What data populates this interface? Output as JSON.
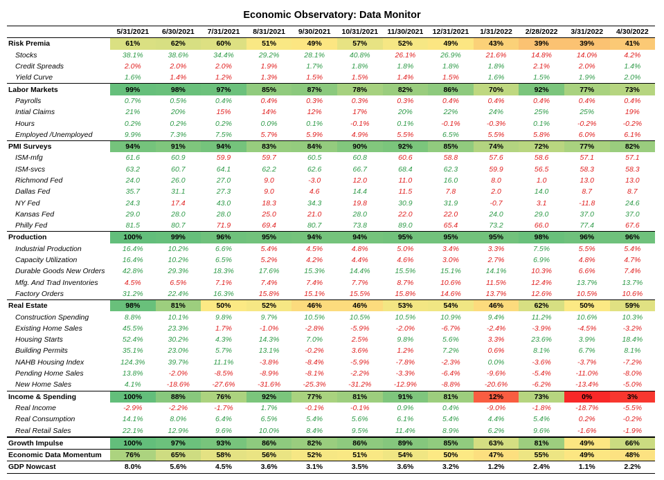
{
  "title": "Economic Observatory: Data Monitor",
  "dates": [
    "5/31/2021",
    "6/30/2021",
    "7/31/2021",
    "8/31/2021",
    "9/30/2021",
    "10/31/2021",
    "11/30/2021",
    "12/31/2021",
    "1/31/2022",
    "2/28/2022",
    "3/31/2022",
    "4/30/2022"
  ],
  "colors": {
    "positive_text": "#2e9a48",
    "negative_text": "#e02020",
    "score_scale": "red (0%) - yellow (50%) - green (100%)"
  },
  "sections": [
    {
      "label": "Risk Premia",
      "values": [
        "61%",
        "62%",
        "60%",
        "51%",
        "49%",
        "57%",
        "52%",
        "49%",
        "43%",
        "39%",
        "39%",
        "41%"
      ],
      "rows": [
        {
          "label": "Stocks",
          "values": [
            "38.1%",
            "38.6%",
            "34.4%",
            "29.2%",
            "28.1%",
            "40.8%",
            "26.1%",
            "26.9%",
            "21.6%",
            "14.8%",
            "14.0%",
            "4.2%"
          ],
          "signs": [
            "+",
            "+",
            "+",
            "+",
            "+",
            "+",
            "-",
            "+",
            "-",
            "-",
            "-",
            "-"
          ]
        },
        {
          "label": "Credit Spreads",
          "values": [
            "2.0%",
            "2.0%",
            "2.0%",
            "1.9%",
            "1.7%",
            "1.8%",
            "1.8%",
            "1.8%",
            "1.8%",
            "2.1%",
            "2.0%",
            "1.4%"
          ],
          "signs": [
            "-",
            "-",
            "-",
            "-",
            "+",
            "+",
            "+",
            "+",
            "+",
            "-",
            "-",
            "+"
          ]
        },
        {
          "label": "Yield Curve",
          "values": [
            "1.6%",
            "1.4%",
            "1.2%",
            "1.3%",
            "1.5%",
            "1.5%",
            "1.4%",
            "1.5%",
            "1.6%",
            "1.5%",
            "1.9%",
            "2.0%"
          ],
          "signs": [
            "+",
            "-",
            "-",
            "-",
            "-",
            "-",
            "-",
            "-",
            "+",
            "+",
            "+",
            "+"
          ]
        }
      ]
    },
    {
      "label": "Labor Markets",
      "values": [
        "99%",
        "98%",
        "97%",
        "85%",
        "87%",
        "78%",
        "82%",
        "86%",
        "70%",
        "92%",
        "77%",
        "73%"
      ],
      "rows": [
        {
          "label": "Payrolls",
          "values": [
            "0.7%",
            "0.5%",
            "0.4%",
            "0.4%",
            "0.3%",
            "0.3%",
            "0.3%",
            "0.4%",
            "0.4%",
            "0.4%",
            "0.4%",
            "0.4%"
          ],
          "signs": [
            "+",
            "+",
            "+",
            "-",
            "-",
            "-",
            "-",
            "-",
            "-",
            "-",
            "-",
            "-"
          ]
        },
        {
          "label": "Intial Claims",
          "values": [
            "21%",
            "20%",
            "15%",
            "14%",
            "12%",
            "17%",
            "20%",
            "22%",
            "24%",
            "25%",
            "25%",
            "19%"
          ],
          "signs": [
            "+",
            "+",
            "-",
            "-",
            "-",
            "-",
            "+",
            "+",
            "+",
            "+",
            "+",
            "-"
          ]
        },
        {
          "label": "Hours",
          "values": [
            "0.2%",
            "0.2%",
            "0.2%",
            "0.0%",
            "0.1%",
            "-0.1%",
            "0.1%",
            "-0.1%",
            "-0.3%",
            "0.1%",
            "-0.2%",
            "-0.2%"
          ],
          "signs": [
            "+",
            "+",
            "+",
            "+",
            "+",
            "-",
            "+",
            "-",
            "-",
            "+",
            "-",
            "-"
          ]
        },
        {
          "label": "Employed /Unemployed",
          "values": [
            "9.9%",
            "7.3%",
            "7.5%",
            "5.7%",
            "5.9%",
            "4.9%",
            "5.5%",
            "6.5%",
            "5.5%",
            "5.8%",
            "6.0%",
            "6.1%"
          ],
          "signs": [
            "+",
            "+",
            "+",
            "-",
            "-",
            "-",
            "-",
            "+",
            "-",
            "-",
            "-",
            "-"
          ]
        }
      ]
    },
    {
      "label": "PMI Surveys",
      "values": [
        "94%",
        "91%",
        "94%",
        "83%",
        "84%",
        "90%",
        "92%",
        "85%",
        "74%",
        "72%",
        "77%",
        "82%"
      ],
      "rows": [
        {
          "label": "ISM-mfg",
          "values": [
            "61.6",
            "60.9",
            "59.9",
            "59.7",
            "60.5",
            "60.8",
            "60.6",
            "58.8",
            "57.6",
            "58.6",
            "57.1",
            "57.1"
          ],
          "signs": [
            "+",
            "+",
            "-",
            "-",
            "+",
            "+",
            "-",
            "-",
            "-",
            "-",
            "-",
            "-"
          ]
        },
        {
          "label": "ISM-svcs",
          "values": [
            "63.2",
            "60.7",
            "64.1",
            "62.2",
            "62.6",
            "66.7",
            "68.4",
            "62.3",
            "59.9",
            "56.5",
            "58.3",
            "58.3"
          ],
          "signs": [
            "+",
            "+",
            "+",
            "+",
            "+",
            "+",
            "+",
            "+",
            "-",
            "-",
            "-",
            "-"
          ]
        },
        {
          "label": "Richmond Fed",
          "values": [
            "24.0",
            "26.0",
            "27.0",
            "9.0",
            "-3.0",
            "12.0",
            "11.0",
            "16.0",
            "8.0",
            "1.0",
            "13.0",
            "13.0"
          ],
          "signs": [
            "+",
            "+",
            "+",
            "-",
            "-",
            "-",
            "-",
            "+",
            "-",
            "-",
            "-",
            "-"
          ]
        },
        {
          "label": "Dallas Fed",
          "values": [
            "35.7",
            "31.1",
            "27.3",
            "9.0",
            "4.6",
            "14.4",
            "11.5",
            "7.8",
            "2.0",
            "14.0",
            "8.7",
            "8.7"
          ],
          "signs": [
            "+",
            "+",
            "+",
            "-",
            "-",
            "+",
            "-",
            "-",
            "-",
            "+",
            "-",
            "-"
          ]
        },
        {
          "label": "NY Fed",
          "values": [
            "24.3",
            "17.4",
            "43.0",
            "18.3",
            "34.3",
            "19.8",
            "30.9",
            "31.9",
            "-0.7",
            "3.1",
            "-11.8",
            "24.6"
          ],
          "signs": [
            "+",
            "-",
            "+",
            "-",
            "+",
            "-",
            "+",
            "+",
            "-",
            "-",
            "-",
            "+"
          ]
        },
        {
          "label": "Kansas Fed",
          "values": [
            "29.0",
            "28.0",
            "28.0",
            "25.0",
            "21.0",
            "28.0",
            "22.0",
            "22.0",
            "24.0",
            "29.0",
            "37.0",
            "37.0"
          ],
          "signs": [
            "+",
            "+",
            "+",
            "-",
            "-",
            "+",
            "-",
            "-",
            "+",
            "+",
            "+",
            "+"
          ]
        },
        {
          "label": "Philly Fed",
          "values": [
            "81.5",
            "80.7",
            "71.9",
            "69.4",
            "80.7",
            "73.8",
            "89.0",
            "65.4",
            "73.2",
            "66.0",
            "77.4",
            "67.6"
          ],
          "signs": [
            "+",
            "+",
            "-",
            "-",
            "+",
            "+",
            "+",
            "-",
            "+",
            "-",
            "+",
            "-"
          ]
        }
      ]
    },
    {
      "label": "Production",
      "values": [
        "100%",
        "99%",
        "96%",
        "95%",
        "94%",
        "94%",
        "95%",
        "95%",
        "95%",
        "98%",
        "96%",
        "96%"
      ],
      "rows": [
        {
          "label": "Industrial Production",
          "values": [
            "16.4%",
            "10.2%",
            "6.6%",
            "5.4%",
            "4.5%",
            "4.8%",
            "5.0%",
            "3.4%",
            "3.3%",
            "7.5%",
            "5.5%",
            "5.4%"
          ],
          "signs": [
            "+",
            "+",
            "+",
            "-",
            "-",
            "-",
            "-",
            "-",
            "-",
            "+",
            "-",
            "-"
          ]
        },
        {
          "label": "Capacity Utilization",
          "values": [
            "16.4%",
            "10.2%",
            "6.5%",
            "5.2%",
            "4.2%",
            "4.4%",
            "4.6%",
            "3.0%",
            "2.7%",
            "6.9%",
            "4.8%",
            "4.7%"
          ],
          "signs": [
            "+",
            "+",
            "+",
            "-",
            "-",
            "-",
            "-",
            "-",
            "-",
            "+",
            "-",
            "-"
          ]
        },
        {
          "label": "Durable Goods New Orders",
          "values": [
            "42.8%",
            "29.3%",
            "18.3%",
            "17.6%",
            "15.3%",
            "14.4%",
            "15.5%",
            "15.1%",
            "14.1%",
            "10.3%",
            "6.6%",
            "7.4%"
          ],
          "signs": [
            "+",
            "+",
            "+",
            "+",
            "+",
            "+",
            "+",
            "+",
            "+",
            "-",
            "-",
            "-"
          ]
        },
        {
          "label": "Mfg. And Trad Inventories",
          "values": [
            "4.5%",
            "6.5%",
            "7.1%",
            "7.4%",
            "7.4%",
            "7.7%",
            "8.7%",
            "10.6%",
            "11.5%",
            "12.4%",
            "13.7%",
            "13.7%"
          ],
          "signs": [
            "-",
            "-",
            "-",
            "-",
            "-",
            "-",
            "-",
            "-",
            "-",
            "-",
            "+",
            "+"
          ]
        },
        {
          "label": "Factory Orders",
          "values": [
            "31.2%",
            "22.4%",
            "16.3%",
            "15.8%",
            "15.1%",
            "15.5%",
            "15.8%",
            "14.6%",
            "13.7%",
            "12.6%",
            "10.5%",
            "10.6%"
          ],
          "signs": [
            "+",
            "+",
            "+",
            "-",
            "-",
            "-",
            "-",
            "-",
            "-",
            "-",
            "-",
            "-"
          ]
        }
      ]
    },
    {
      "label": "Real Estate",
      "values": [
        "98%",
        "81%",
        "50%",
        "52%",
        "46%",
        "46%",
        "53%",
        "54%",
        "46%",
        "62%",
        "50%",
        "59%"
      ],
      "rows": [
        {
          "label": "Construction Spending",
          "values": [
            "8.8%",
            "10.1%",
            "9.8%",
            "9.7%",
            "10.5%",
            "10.5%",
            "10.5%",
            "10.9%",
            "9.4%",
            "11.2%",
            "10.6%",
            "10.3%"
          ],
          "signs": [
            "+",
            "+",
            "+",
            "+",
            "+",
            "+",
            "+",
            "+",
            "+",
            "+",
            "+",
            "+"
          ]
        },
        {
          "label": "Existing Home Sales",
          "values": [
            "45.5%",
            "23.3%",
            "1.7%",
            "-1.0%",
            "-2.8%",
            "-5.9%",
            "-2.0%",
            "-6.7%",
            "-2.4%",
            "-3.9%",
            "-4.5%",
            "-3.2%"
          ],
          "signs": [
            "+",
            "+",
            "-",
            "-",
            "-",
            "-",
            "-",
            "-",
            "-",
            "-",
            "-",
            "-"
          ]
        },
        {
          "label": "Housing Starts",
          "values": [
            "52.4%",
            "30.2%",
            "4.3%",
            "14.3%",
            "7.0%",
            "2.5%",
            "9.8%",
            "5.6%",
            "3.3%",
            "23.6%",
            "3.9%",
            "18.4%"
          ],
          "signs": [
            "+",
            "+",
            "+",
            "+",
            "+",
            "-",
            "+",
            "+",
            "-",
            "+",
            "+",
            "+"
          ]
        },
        {
          "label": "Building Permits",
          "values": [
            "35.1%",
            "23.0%",
            "5.7%",
            "13.1%",
            "-0.2%",
            "3.6%",
            "1.2%",
            "7.2%",
            "0.6%",
            "8.1%",
            "6.7%",
            "8.1%"
          ],
          "signs": [
            "+",
            "+",
            "+",
            "+",
            "-",
            "-",
            "-",
            "+",
            "-",
            "+",
            "+",
            "+"
          ]
        },
        {
          "label": "NAHB Housing Index",
          "values": [
            "124.3%",
            "39.7%",
            "11.1%",
            "-3.8%",
            "-8.4%",
            "-5.9%",
            "-7.8%",
            "-2.3%",
            "0.0%",
            "-3.6%",
            "-3.7%",
            "-7.2%"
          ],
          "signs": [
            "+",
            "+",
            "+",
            "-",
            "-",
            "-",
            "-",
            "-",
            "+",
            "-",
            "-",
            "-"
          ]
        },
        {
          "label": "Pending Home Sales",
          "values": [
            "13.8%",
            "-2.0%",
            "-8.5%",
            "-8.9%",
            "-8.1%",
            "-2.2%",
            "-3.3%",
            "-6.4%",
            "-9.6%",
            "-5.4%",
            "-11.0%",
            "-8.0%"
          ],
          "signs": [
            "+",
            "-",
            "-",
            "-",
            "-",
            "-",
            "-",
            "-",
            "-",
            "-",
            "-",
            "-"
          ]
        },
        {
          "label": "New Home Sales",
          "values": [
            "4.1%",
            "-18.6%",
            "-27.6%",
            "-31.6%",
            "-25.3%",
            "-31.2%",
            "-12.9%",
            "-8.8%",
            "-20.6%",
            "-6.2%",
            "-13.4%",
            "-5.0%"
          ],
          "signs": [
            "+",
            "-",
            "-",
            "-",
            "-",
            "-",
            "-",
            "-",
            "-",
            "-",
            "-",
            "-"
          ]
        }
      ]
    },
    {
      "label": "Income & Spending",
      "values": [
        "100%",
        "88%",
        "76%",
        "92%",
        "77%",
        "81%",
        "91%",
        "81%",
        "12%",
        "73%",
        "0%",
        "3%"
      ],
      "rows": [
        {
          "label": "Real Income",
          "values": [
            "-2.9%",
            "-2.2%",
            "-1.7%",
            "1.7%",
            "-0.1%",
            "-0.1%",
            "0.9%",
            "0.4%",
            "-9.0%",
            "-1.8%",
            "-18.7%",
            "-5.5%"
          ],
          "signs": [
            "-",
            "-",
            "-",
            "+",
            "-",
            "-",
            "+",
            "+",
            "-",
            "-",
            "-",
            "-"
          ]
        },
        {
          "label": "Real Consumption",
          "values": [
            "14.1%",
            "8.0%",
            "6.4%",
            "6.5%",
            "5.4%",
            "5.6%",
            "6.1%",
            "5.4%",
            "4.4%",
            "5.4%",
            "0.2%",
            "-0.2%"
          ],
          "signs": [
            "+",
            "+",
            "+",
            "+",
            "+",
            "+",
            "+",
            "+",
            "+",
            "+",
            "-",
            "-"
          ]
        },
        {
          "label": "Real Retail Sales",
          "values": [
            "22.1%",
            "12.9%",
            "9.6%",
            "10.0%",
            "8.4%",
            "9.5%",
            "11.4%",
            "8.9%",
            "6.2%",
            "9.6%",
            "-1.6%",
            "-1.9%"
          ],
          "signs": [
            "+",
            "+",
            "+",
            "+",
            "+",
            "+",
            "+",
            "+",
            "+",
            "+",
            "-",
            "-"
          ]
        }
      ]
    }
  ],
  "summary": [
    {
      "label": "Growth Impulse",
      "values": [
        "100%",
        "97%",
        "93%",
        "86%",
        "82%",
        "86%",
        "89%",
        "85%",
        "63%",
        "81%",
        "49%",
        "66%"
      ]
    },
    {
      "label": "Economic Data Momentum",
      "values": [
        "76%",
        "65%",
        "58%",
        "56%",
        "52%",
        "51%",
        "54%",
        "50%",
        "47%",
        "55%",
        "49%",
        "48%"
      ]
    },
    {
      "label": "GDP Nowcast",
      "values": [
        "8.0%",
        "5.6%",
        "4.5%",
        "3.6%",
        "3.1%",
        "3.5%",
        "3.6%",
        "3.2%",
        "1.2%",
        "2.4%",
        "1.1%",
        "2.2%"
      ]
    }
  ]
}
